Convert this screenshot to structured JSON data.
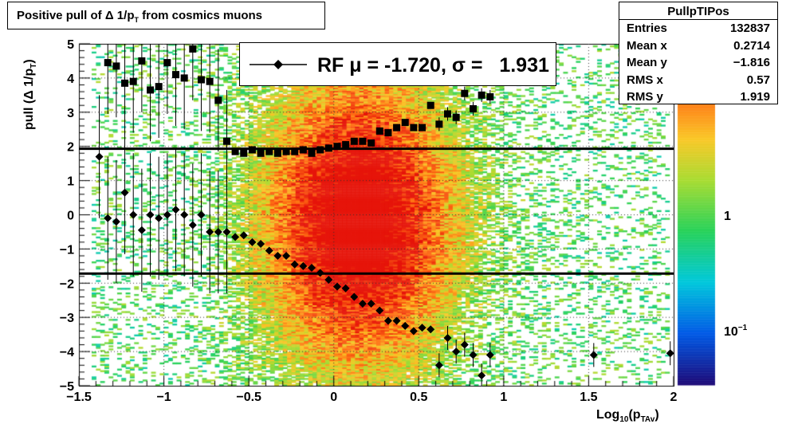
{
  "title": {
    "main": "Positive pull of",
    "delta": "Δ",
    "expr": " 1/p",
    "sub": "T",
    "tail": " from cosmics muons"
  },
  "stats": {
    "name": "PullpTIPos",
    "rows": [
      {
        "key": "Entries",
        "value": "132837"
      },
      {
        "key": "Mean x",
        "value": "0.2714"
      },
      {
        "key": "Mean y",
        "value": "−1.816"
      },
      {
        "key": "RMS x",
        "value": "0.57"
      },
      {
        "key": "RMS y",
        "value": "1.919"
      }
    ]
  },
  "legend": {
    "text": "RF μ = -1.720, σ =   1.931"
  },
  "colorbar": {
    "labels": [
      "1",
      "10"
    ],
    "sup": "−1"
  },
  "axes": {
    "ylabel": {
      "pre": "pull (Δ 1/p",
      "sub": "T",
      "post": ")"
    },
    "xlabel": {
      "pre": "Log",
      "sub1": "10",
      "mid": "(p",
      "sub2": "TAv",
      "post": ")"
    }
  },
  "chart_data": {
    "type": "heatmap",
    "xlim": [
      -1.5,
      2
    ],
    "ylim": [
      -5,
      5
    ],
    "xticks": [
      "−1.5",
      "−1",
      "−0.5",
      "0",
      "0.5",
      "1",
      "1.5",
      "2"
    ],
    "yticks": [
      "−5",
      "−4",
      "−3",
      "−2",
      "−1",
      "0",
      "1",
      "2",
      "3",
      "4",
      "5"
    ],
    "grid": true,
    "logz": true,
    "hlines": [
      1.931,
      -1.72
    ],
    "mean_points": {
      "x": [
        -1.38,
        -1.33,
        -1.28,
        -1.23,
        -1.18,
        -1.13,
        -1.08,
        -1.03,
        -0.98,
        -0.93,
        -0.88,
        -0.83,
        -0.78,
        -0.73,
        -0.68,
        -0.63,
        -0.58,
        -0.53,
        -0.48,
        -0.43,
        -0.38,
        -0.33,
        -0.28,
        -0.23,
        -0.18,
        -0.13,
        -0.08,
        -0.03,
        0.02,
        0.07,
        0.12,
        0.17,
        0.22,
        0.27,
        0.32,
        0.37,
        0.42,
        0.47,
        0.52,
        0.57,
        0.62,
        0.67,
        0.72,
        0.77,
        0.82,
        0.87,
        0.92,
        1.53,
        1.98
      ],
      "y": [
        1.7,
        -0.1,
        -0.2,
        0.65,
        0.0,
        -0.45,
        0.0,
        -0.1,
        0.0,
        0.15,
        0.0,
        -0.3,
        0.0,
        -0.5,
        -0.5,
        -0.5,
        -0.65,
        -0.6,
        -0.8,
        -0.85,
        -1.05,
        -1.2,
        -1.2,
        -1.45,
        -1.5,
        -1.55,
        -1.7,
        -1.9,
        -2.1,
        -2.15,
        -2.4,
        -2.6,
        -2.6,
        -2.8,
        -3.1,
        -3.1,
        -3.25,
        -3.4,
        -3.3,
        -3.35,
        -4.4,
        -3.6,
        -4.0,
        -3.8,
        -4.1,
        -4.7,
        -4.1,
        -4.1,
        -4.05
      ]
    },
    "rms_points": {
      "x": [
        -1.33,
        -1.28,
        -1.23,
        -1.18,
        -1.13,
        -1.08,
        -1.03,
        -0.98,
        -0.93,
        -0.88,
        -0.83,
        -0.78,
        -0.73,
        -0.68,
        -0.63,
        -0.58,
        -0.53,
        -0.48,
        -0.43,
        -0.38,
        -0.33,
        -0.28,
        -0.23,
        -0.18,
        -0.13,
        -0.08,
        -0.03,
        0.02,
        0.07,
        0.12,
        0.17,
        0.22,
        0.27,
        0.32,
        0.37,
        0.42,
        0.47,
        0.52,
        0.57,
        0.62,
        0.67,
        0.72,
        0.77,
        0.82,
        0.87,
        0.92
      ],
      "y": [
        4.45,
        4.35,
        3.85,
        3.9,
        4.5,
        3.65,
        3.75,
        4.45,
        4.1,
        4.0,
        4.85,
        3.95,
        3.9,
        3.35,
        2.15,
        1.85,
        1.8,
        1.9,
        1.8,
        1.85,
        1.8,
        1.85,
        1.85,
        1.9,
        1.8,
        1.9,
        1.95,
        2.0,
        2.05,
        2.15,
        2.15,
        2.1,
        2.45,
        2.4,
        2.55,
        2.7,
        2.55,
        2.55,
        3.2,
        2.65,
        2.95,
        2.85,
        3.55,
        3.1,
        3.5,
        3.45
      ]
    }
  }
}
